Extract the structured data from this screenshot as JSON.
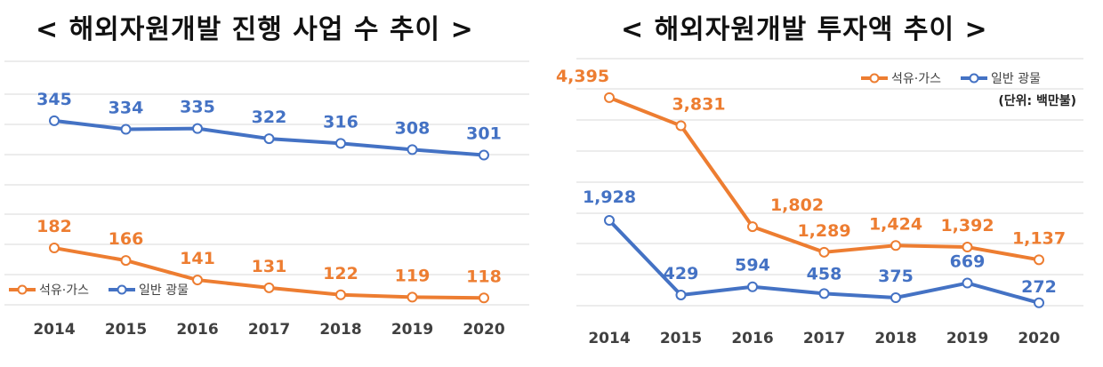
{
  "chart_data": [
    {
      "type": "line",
      "title": "< 해외자원개발 진행 사업 수 추이 >",
      "categories": [
        "2014",
        "2015",
        "2016",
        "2017",
        "2018",
        "2019",
        "2020"
      ],
      "series": [
        {
          "name": "일반 광물",
          "color": "#4472c4",
          "values": [
            345,
            334,
            335,
            322,
            316,
            308,
            301
          ]
        },
        {
          "name": "석유·가스",
          "color": "#ed7d31",
          "values": [
            182,
            166,
            141,
            131,
            122,
            119,
            118
          ]
        }
      ],
      "ylim": [
        50,
        420
      ],
      "grid": true,
      "legend_position": "bottom-left",
      "legend_order": [
        "석유·가스",
        "일반 광물"
      ]
    },
    {
      "type": "line",
      "title": "< 해외자원개발 투자액 추이 >",
      "unit_note": "(단위: 백만불)",
      "categories": [
        "2014",
        "2015",
        "2016",
        "2017",
        "2018",
        "2019",
        "2020"
      ],
      "series": [
        {
          "name": "석유·가스",
          "color": "#ed7d31",
          "values": [
            4395,
            3831,
            1802,
            1289,
            1424,
            1392,
            1137
          ]
        },
        {
          "name": "일반 광물",
          "color": "#4472c4",
          "values": [
            1928,
            429,
            594,
            458,
            375,
            669,
            272
          ]
        }
      ],
      "value_labels": {
        "석유·가스": [
          "4,395",
          "3,831",
          "1,802",
          "1,289",
          "1,424",
          "1,392",
          "1,137"
        ],
        "일반 광물": [
          "1,928",
          "429",
          "594",
          "458",
          "375",
          "669",
          "272"
        ]
      },
      "ylim": [
        -250,
        5250
      ],
      "grid": true,
      "legend_position": "top-right",
      "legend_order": [
        "석유·가스",
        "일반 광물"
      ]
    }
  ]
}
